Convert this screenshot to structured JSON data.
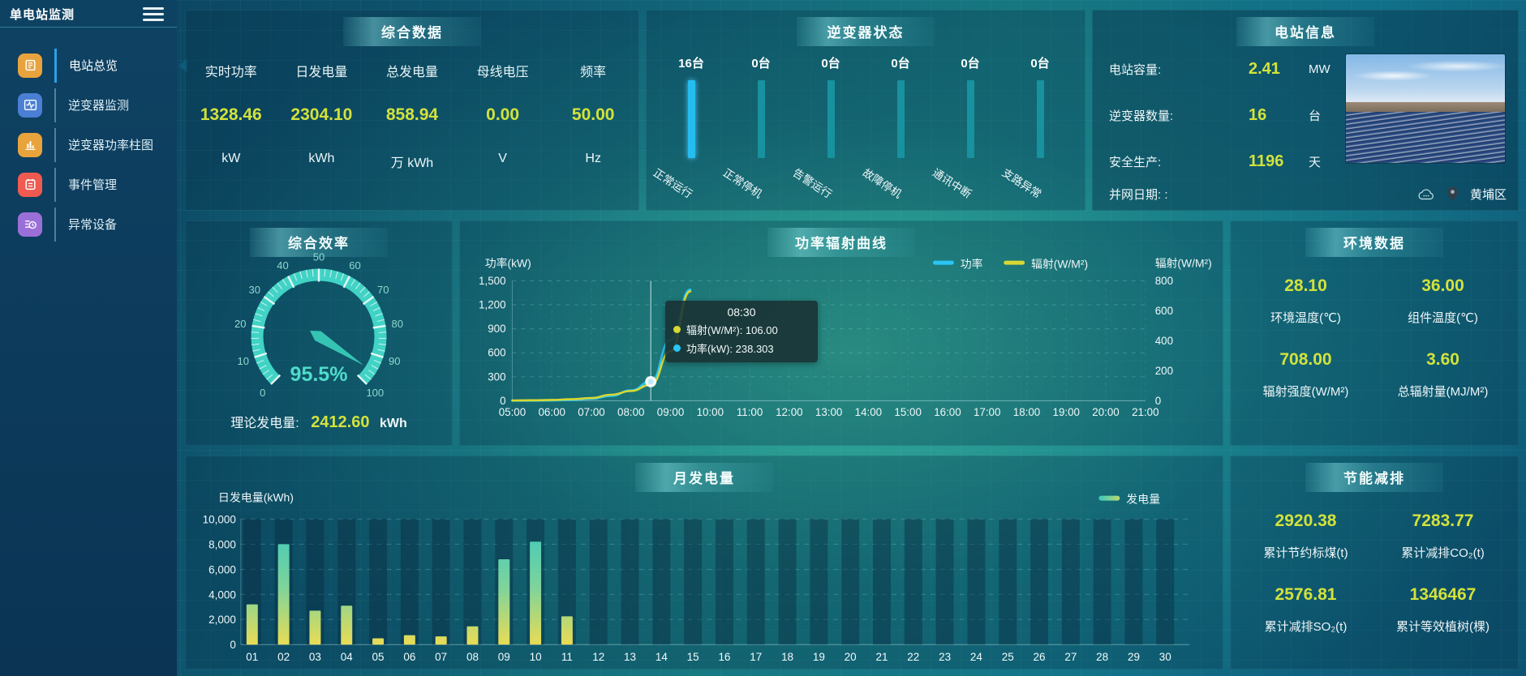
{
  "app": {
    "title": "单电站监测"
  },
  "colors": {
    "value_yellow": "#d3e23c",
    "status_bar_active": "#25bdf0",
    "status_bar_idle": "#17929e",
    "line_power": "#29c5f5",
    "line_radiation": "#d8d832",
    "gauge_arc": "#41d3c5",
    "bar_gradient_top": "#38c8c0",
    "bar_gradient_bottom": "#e8dc55"
  },
  "sidebar": {
    "items": [
      {
        "label": "电站总览",
        "icon": "doc",
        "icon_bg": "#e8a33d",
        "active": true
      },
      {
        "label": "逆变器监测",
        "icon": "wave",
        "icon_bg": "#4a7fd4",
        "active": false
      },
      {
        "label": "逆变器功率柱图",
        "icon": "bars",
        "icon_bg": "#e8a33d",
        "active": false
      },
      {
        "label": "事件管理",
        "icon": "note",
        "icon_bg": "#f05a50",
        "active": false
      },
      {
        "label": "异常设备",
        "icon": "device",
        "icon_bg": "#9b6fd8",
        "active": false
      }
    ]
  },
  "overview": {
    "title": "综合数据",
    "metrics": [
      {
        "label": "实时功率",
        "value": "1328.46",
        "unit": "kW"
      },
      {
        "label": "日发电量",
        "value": "2304.10",
        "unit": "kWh"
      },
      {
        "label": "总发电量",
        "value": "858.94",
        "unit": "万 kWh"
      },
      {
        "label": "母线电压",
        "value": "0.00",
        "unit": "V"
      },
      {
        "label": "频率",
        "value": "50.00",
        "unit": "Hz"
      }
    ]
  },
  "inverter_status": {
    "title": "逆变器状态",
    "items": [
      {
        "count": "16台",
        "label": "正常运行",
        "highlight": true
      },
      {
        "count": "0台",
        "label": "正常停机",
        "highlight": false
      },
      {
        "count": "0台",
        "label": "告警运行",
        "highlight": false
      },
      {
        "count": "0台",
        "label": "故障停机",
        "highlight": false
      },
      {
        "count": "0台",
        "label": "通讯中断",
        "highlight": false
      },
      {
        "count": "0台",
        "label": "支路异常",
        "highlight": false
      }
    ]
  },
  "station_info": {
    "title": "电站信息",
    "rows": [
      {
        "label": "电站容量:",
        "value": "2.41",
        "unit": "MW"
      },
      {
        "label": "逆变器数量:",
        "value": "16",
        "unit": "台"
      },
      {
        "label": "安全生产:",
        "value": "1196",
        "unit": "天"
      }
    ],
    "grid_date_label": "并网日期: :",
    "location": "黄埔区"
  },
  "efficiency": {
    "title": "综合效率",
    "theory_label": "理论发电量:",
    "theory_value": "2412.60",
    "theory_unit": "kWh"
  },
  "power_radiation": {
    "title": "功率辐射曲线"
  },
  "environment": {
    "title": "环境数据",
    "cells": [
      {
        "value": "28.10",
        "label": "环境温度(℃)"
      },
      {
        "value": "36.00",
        "label": "组件温度(℃)"
      },
      {
        "value": "708.00",
        "label": "辐射强度(W/M²)"
      },
      {
        "value": "3.60",
        "label": "总辐射量(MJ/M²)"
      }
    ]
  },
  "monthly": {
    "title": "月发电量"
  },
  "saving": {
    "title": "节能减排",
    "cells": [
      {
        "value": "2920.38",
        "label": "累计节约标煤(t)"
      },
      {
        "value": "7283.77",
        "label": "累计减排CO₂(t)"
      },
      {
        "value": "2576.81",
        "label": "累计减排SO₂(t)"
      },
      {
        "value": "1346467",
        "label": "累计等效植树(棵)"
      }
    ]
  },
  "chart_data": [
    {
      "id": "power_radiation_curve",
      "type": "line",
      "title": "功率辐射曲线",
      "legend": [
        "功率",
        "辐射(W/M²)"
      ],
      "legend_position": "top-center-right",
      "grid": true,
      "x_labels": [
        "05:00",
        "06:00",
        "07:00",
        "08:00",
        "09:00",
        "10:00",
        "11:00",
        "12:00",
        "13:00",
        "14:00",
        "15:00",
        "16:00",
        "17:00",
        "18:00",
        "19:00",
        "20:00",
        "21:00"
      ],
      "y_left": {
        "title": "功率(kW)",
        "min": 0,
        "max": 1500,
        "step": 300
      },
      "y_right": {
        "title": "辐射(W/M²)",
        "min": 0,
        "max": 800,
        "step": 200
      },
      "x_hours": [
        5,
        5.5,
        6,
        6.5,
        7,
        7.5,
        8,
        8.5,
        9,
        9.5
      ],
      "series": [
        {
          "name": "功率",
          "axis": "left",
          "color": "#29c5f5",
          "values": [
            0,
            0,
            3,
            8,
            25,
            60,
            130,
            238.303,
            760,
            1390
          ]
        },
        {
          "name": "辐射(W/M²)",
          "axis": "right",
          "color": "#d8d832",
          "values": [
            2,
            3,
            5,
            10,
            18,
            40,
            65,
            106,
            330,
            730
          ]
        }
      ],
      "hover": {
        "time": "08:30",
        "x_hour": 8.5,
        "rows": [
          {
            "name": "辐射(W/M²)",
            "value": "106.00",
            "color": "#d8d832"
          },
          {
            "name": "功率(kW)",
            "value": "238.303",
            "color": "#29c5f5"
          }
        ]
      }
    },
    {
      "id": "monthly_generation",
      "type": "bar",
      "title": "月发电量",
      "axis_title": "日发电量(kWh)",
      "legend": "发电量",
      "legend_position": "top-right",
      "grid": true,
      "ylim": [
        0,
        10000
      ],
      "step": 2000,
      "categories": [
        "01",
        "02",
        "03",
        "04",
        "05",
        "06",
        "07",
        "08",
        "09",
        "10",
        "11",
        "12",
        "13",
        "14",
        "15",
        "16",
        "17",
        "18",
        "19",
        "20",
        "21",
        "22",
        "23",
        "24",
        "25",
        "26",
        "27",
        "28",
        "29",
        "30"
      ],
      "values": [
        3200,
        8000,
        2700,
        3100,
        500,
        750,
        650,
        1450,
        6800,
        8200,
        2250,
        0,
        0,
        0,
        0,
        0,
        0,
        0,
        0,
        0,
        0,
        0,
        0,
        0,
        0,
        0,
        0,
        0,
        0,
        0
      ]
    },
    {
      "id": "efficiency_gauge",
      "type": "gauge",
      "min": 0,
      "max": 100,
      "value": 95.5,
      "display": "95.5%",
      "major_tick": 10,
      "tick_labels": [
        "0",
        "10",
        "20",
        "30",
        "40",
        "50",
        "60",
        "70",
        "80",
        "90",
        "100"
      ]
    }
  ]
}
